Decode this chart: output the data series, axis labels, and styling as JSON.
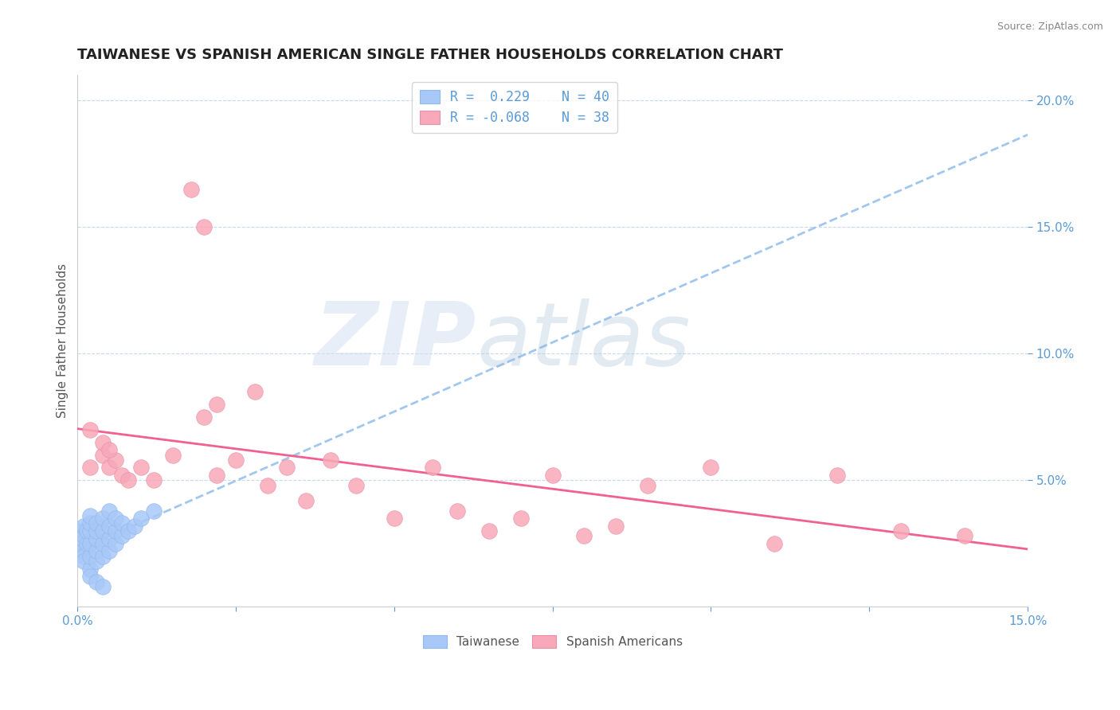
{
  "title": "TAIWANESE VS SPANISH AMERICAN SINGLE FATHER HOUSEHOLDS CORRELATION CHART",
  "source": "Source: ZipAtlas.com",
  "ylabel": "Single Father Households",
  "xlim": [
    0,
    0.15
  ],
  "ylim": [
    0,
    0.21
  ],
  "yticks": [
    0.05,
    0.1,
    0.15,
    0.2
  ],
  "ytick_labels": [
    "5.0%",
    "10.0%",
    "15.0%",
    "20.0%"
  ],
  "xticks": [
    0.0,
    0.025,
    0.05,
    0.075,
    0.1,
    0.125,
    0.15
  ],
  "xtick_labels": [
    "0.0%",
    "",
    "",
    "",
    "",
    "",
    "15.0%"
  ],
  "legend_R1": "0.229",
  "legend_N1": "40",
  "legend_R2": "-0.068",
  "legend_N2": "38",
  "taiwanese_color": "#a8c8f8",
  "spanish_color": "#f8a8b8",
  "trendline_blue_color": "#7ab0e8",
  "trendline_pink_color": "#f06090",
  "background_color": "#ffffff",
  "taiwanese_x": [
    0.0005,
    0.0005,
    0.0008,
    0.001,
    0.001,
    0.001,
    0.001,
    0.0015,
    0.0015,
    0.002,
    0.002,
    0.002,
    0.002,
    0.002,
    0.002,
    0.002,
    0.003,
    0.003,
    0.003,
    0.003,
    0.003,
    0.003,
    0.004,
    0.004,
    0.004,
    0.004,
    0.004,
    0.005,
    0.005,
    0.005,
    0.005,
    0.006,
    0.006,
    0.006,
    0.007,
    0.007,
    0.008,
    0.009,
    0.01,
    0.012
  ],
  "taiwanese_y": [
    0.03,
    0.025,
    0.022,
    0.028,
    0.032,
    0.02,
    0.018,
    0.025,
    0.03,
    0.015,
    0.02,
    0.025,
    0.03,
    0.033,
    0.036,
    0.012,
    0.018,
    0.022,
    0.027,
    0.03,
    0.033,
    0.01,
    0.02,
    0.025,
    0.03,
    0.035,
    0.008,
    0.022,
    0.027,
    0.032,
    0.038,
    0.025,
    0.03,
    0.035,
    0.028,
    0.033,
    0.03,
    0.032,
    0.035,
    0.038
  ],
  "spanish_x": [
    0.002,
    0.004,
    0.005,
    0.006,
    0.007,
    0.008,
    0.01,
    0.012,
    0.015,
    0.018,
    0.02,
    0.022,
    0.025,
    0.028,
    0.03,
    0.033,
    0.036,
    0.04,
    0.044,
    0.05,
    0.056,
    0.06,
    0.065,
    0.07,
    0.075,
    0.08,
    0.085,
    0.09,
    0.1,
    0.11,
    0.12,
    0.13,
    0.14,
    0.02,
    0.022,
    0.002,
    0.004,
    0.005
  ],
  "spanish_y": [
    0.055,
    0.06,
    0.055,
    0.058,
    0.052,
    0.05,
    0.055,
    0.05,
    0.06,
    0.165,
    0.15,
    0.052,
    0.058,
    0.085,
    0.048,
    0.055,
    0.042,
    0.058,
    0.048,
    0.035,
    0.055,
    0.038,
    0.03,
    0.035,
    0.052,
    0.028,
    0.032,
    0.048,
    0.055,
    0.025,
    0.052,
    0.03,
    0.028,
    0.075,
    0.08,
    0.07,
    0.065,
    0.062
  ],
  "grid_color": "#c8d8f0",
  "title_fontsize": 13,
  "axis_label_fontsize": 11,
  "tick_fontsize": 11
}
